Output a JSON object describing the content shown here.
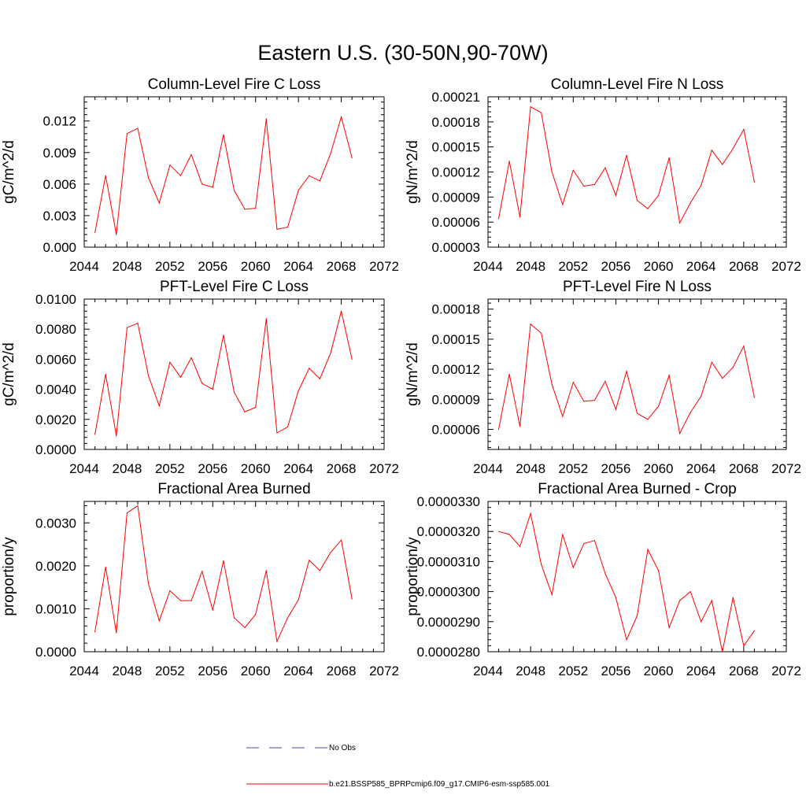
{
  "main_title": "Eastern U.S. (30-50N,90-70W)",
  "legend": [
    {
      "label": "No Obs",
      "color": "#4a4aa0",
      "style": "dashed"
    },
    {
      "label": "b.e21.BSSP585_BPRPcmip6.f09_g17.CMIP6-esm-ssp585.001",
      "color": "#ff0000",
      "style": "solid"
    }
  ],
  "chart_data": [
    {
      "type": "line",
      "title": "Column-Level Fire C Loss",
      "ylabel": "gC/m^2/d",
      "xlim": [
        2044,
        2072
      ],
      "xticks": [
        2044,
        2048,
        2052,
        2056,
        2060,
        2064,
        2068,
        2072
      ],
      "xtick_labels": [
        "2044",
        "2048",
        "2052",
        "2056",
        "2060",
        "2064",
        "2068",
        "2072"
      ],
      "ylim": [
        0,
        0.0143
      ],
      "yticks": [
        0,
        0.003,
        0.006,
        0.009,
        0.012
      ],
      "ytick_labels": [
        "0.000",
        "0.003",
        "0.006",
        "0.009",
        "0.012"
      ],
      "series": [
        {
          "color": "#ff0000",
          "x": [
            2045,
            2046,
            2047,
            2048,
            2049,
            2050,
            2051,
            2052,
            2053,
            2054,
            2055,
            2056,
            2057,
            2058,
            2059,
            2060,
            2061,
            2062,
            2063,
            2064,
            2065,
            2066,
            2067,
            2068,
            2069
          ],
          "values": [
            0.0014,
            0.0068,
            0.0012,
            0.0108,
            0.0113,
            0.0066,
            0.0042,
            0.0078,
            0.0068,
            0.0088,
            0.006,
            0.0057,
            0.0107,
            0.0054,
            0.0036,
            0.0037,
            0.0122,
            0.0017,
            0.0019,
            0.0054,
            0.0068,
            0.0063,
            0.0089,
            0.0124,
            0.0085
          ]
        }
      ]
    },
    {
      "type": "line",
      "title": "Column-Level Fire N Loss",
      "ylabel": "gN/m^2/d",
      "xlim": [
        2044,
        2072
      ],
      "xticks": [
        2044,
        2048,
        2052,
        2056,
        2060,
        2064,
        2068,
        2072
      ],
      "xtick_labels": [
        "2044",
        "2048",
        "2052",
        "2056",
        "2060",
        "2064",
        "2068",
        "2072"
      ],
      "ylim": [
        3e-05,
        0.00021
      ],
      "yticks": [
        3e-05,
        6e-05,
        9e-05,
        0.00012,
        0.00015,
        0.00018,
        0.00021
      ],
      "ytick_labels": [
        "0.00003",
        "0.00006",
        "0.00009",
        "0.00012",
        "0.00015",
        "0.00018",
        "0.00021"
      ],
      "series": [
        {
          "color": "#ff0000",
          "x": [
            2045,
            2046,
            2047,
            2048,
            2049,
            2050,
            2051,
            2052,
            2053,
            2054,
            2055,
            2056,
            2057,
            2058,
            2059,
            2060,
            2061,
            2062,
            2063,
            2064,
            2065,
            2066,
            2067,
            2068,
            2069
          ],
          "values": [
            6.4e-05,
            0.000133,
            6.6e-05,
            0.000198,
            0.000191,
            0.00012,
            8.1e-05,
            0.000122,
            0.000103,
            0.000105,
            0.000125,
            9.2e-05,
            0.00014,
            8.6e-05,
            7.6e-05,
            9.2e-05,
            0.000137,
            5.9e-05,
            8.3e-05,
            0.000104,
            0.000146,
            0.000129,
            0.000148,
            0.000171,
            0.000108
          ]
        }
      ]
    },
    {
      "type": "line",
      "title": "PFT-Level Fire C Loss",
      "ylabel": "gC/m^2/d",
      "xlim": [
        2044,
        2072
      ],
      "xticks": [
        2044,
        2048,
        2052,
        2056,
        2060,
        2064,
        2068,
        2072
      ],
      "xtick_labels": [
        "2044",
        "2048",
        "2052",
        "2056",
        "2060",
        "2064",
        "2068",
        "2072"
      ],
      "ylim": [
        0,
        0.01
      ],
      "yticks": [
        0,
        0.002,
        0.004,
        0.006,
        0.008,
        0.01
      ],
      "ytick_labels": [
        "0.0000",
        "0.0020",
        "0.0040",
        "0.0060",
        "0.0080",
        "0.0100"
      ],
      "series": [
        {
          "color": "#ff0000",
          "x": [
            2045,
            2046,
            2047,
            2048,
            2049,
            2050,
            2051,
            2052,
            2053,
            2054,
            2055,
            2056,
            2057,
            2058,
            2059,
            2060,
            2061,
            2062,
            2063,
            2064,
            2065,
            2066,
            2067,
            2068,
            2069
          ],
          "values": [
            0.001,
            0.005,
            0.0009,
            0.0081,
            0.0084,
            0.0049,
            0.0029,
            0.0058,
            0.0048,
            0.0061,
            0.0044,
            0.004,
            0.0076,
            0.0038,
            0.0025,
            0.0028,
            0.0087,
            0.0011,
            0.0015,
            0.0039,
            0.0054,
            0.0047,
            0.0064,
            0.0092,
            0.006
          ]
        }
      ]
    },
    {
      "type": "line",
      "title": "PFT-Level Fire N Loss",
      "ylabel": "gN/m^2/d",
      "xlim": [
        2044,
        2072
      ],
      "xticks": [
        2044,
        2048,
        2052,
        2056,
        2060,
        2064,
        2068,
        2072
      ],
      "xtick_labels": [
        "2044",
        "2048",
        "2052",
        "2056",
        "2060",
        "2064",
        "2068",
        "2072"
      ],
      "ylim": [
        4e-05,
        0.00019
      ],
      "yticks": [
        6e-05,
        9e-05,
        0.00012,
        0.00015,
        0.00018
      ],
      "ytick_labels": [
        "0.00006",
        "0.00009",
        "0.00012",
        "0.00015",
        "0.00018"
      ],
      "series": [
        {
          "color": "#ff0000",
          "x": [
            2045,
            2046,
            2047,
            2048,
            2049,
            2050,
            2051,
            2052,
            2053,
            2054,
            2055,
            2056,
            2057,
            2058,
            2059,
            2060,
            2061,
            2062,
            2063,
            2064,
            2065,
            2066,
            2067,
            2068,
            2069
          ],
          "values": [
            6e-05,
            0.000115,
            6.3e-05,
            0.000165,
            0.000156,
            0.000105,
            7.3e-05,
            0.000107,
            8.8e-05,
            8.9e-05,
            0.000108,
            8e-05,
            0.000118,
            7.6e-05,
            7e-05,
            8.3e-05,
            0.000114,
            5.6e-05,
            7.7e-05,
            9.3e-05,
            0.000127,
            0.000111,
            0.000122,
            0.000143,
            9.2e-05
          ]
        }
      ]
    },
    {
      "type": "line",
      "title": "Fractional Area Burned",
      "ylabel": "proportion/y",
      "xlim": [
        2044,
        2072
      ],
      "xticks": [
        2044,
        2048,
        2052,
        2056,
        2060,
        2064,
        2068,
        2072
      ],
      "xtick_labels": [
        "2044",
        "2048",
        "2052",
        "2056",
        "2060",
        "2064",
        "2068",
        "2072"
      ],
      "ylim": [
        0,
        0.0035
      ],
      "yticks": [
        0,
        0.001,
        0.002,
        0.003
      ],
      "ytick_labels": [
        "0.0000",
        "0.0010",
        "0.0020",
        "0.0030"
      ],
      "series": [
        {
          "color": "#ff0000",
          "x": [
            2045,
            2046,
            2047,
            2048,
            2049,
            2050,
            2051,
            2052,
            2053,
            2054,
            2055,
            2056,
            2057,
            2058,
            2059,
            2060,
            2061,
            2062,
            2063,
            2064,
            2065,
            2066,
            2067,
            2068,
            2069
          ],
          "values": [
            0.00046,
            0.00197,
            0.00044,
            0.00323,
            0.0034,
            0.00158,
            0.00072,
            0.00142,
            0.00119,
            0.00119,
            0.00187,
            0.00097,
            0.00212,
            0.00079,
            0.00056,
            0.00087,
            0.00189,
            0.00024,
            0.00079,
            0.00121,
            0.00213,
            0.00189,
            0.00231,
            0.0026,
            0.00123
          ]
        }
      ]
    },
    {
      "type": "line",
      "title": "Fractional Area Burned - Crop",
      "ylabel": "proportion/y",
      "xlim": [
        2044,
        2072
      ],
      "xticks": [
        2044,
        2048,
        2052,
        2056,
        2060,
        2064,
        2068,
        2072
      ],
      "xtick_labels": [
        "2044",
        "2048",
        "2052",
        "2056",
        "2060",
        "2064",
        "2068",
        "2072"
      ],
      "ylim": [
        2.8e-05,
        3.3e-05
      ],
      "yticks": [
        2.8e-05,
        2.9e-05,
        3e-05,
        3.1e-05,
        3.2e-05,
        3.3e-05
      ],
      "ytick_labels": [
        "0.0000280",
        "0.0000290",
        "0.0000300",
        "0.0000310",
        "0.0000320",
        "0.0000330"
      ],
      "series": [
        {
          "color": "#ff0000",
          "x": [
            2045,
            2046,
            2047,
            2048,
            2049,
            2050,
            2051,
            2052,
            2053,
            2054,
            2055,
            2056,
            2057,
            2058,
            2059,
            2060,
            2061,
            2062,
            2063,
            2064,
            2065,
            2066,
            2067,
            2068,
            2069
          ],
          "values": [
            3.2e-05,
            3.19e-05,
            3.15e-05,
            3.26e-05,
            3.09e-05,
            2.99e-05,
            3.19e-05,
            3.08e-05,
            3.16e-05,
            3.17e-05,
            3.06e-05,
            2.98e-05,
            2.84e-05,
            2.92e-05,
            3.14e-05,
            3.07e-05,
            2.88e-05,
            2.97e-05,
            3e-05,
            2.9e-05,
            2.97e-05,
            2.8e-05,
            2.98e-05,
            2.82e-05,
            2.87e-05
          ]
        }
      ]
    }
  ]
}
